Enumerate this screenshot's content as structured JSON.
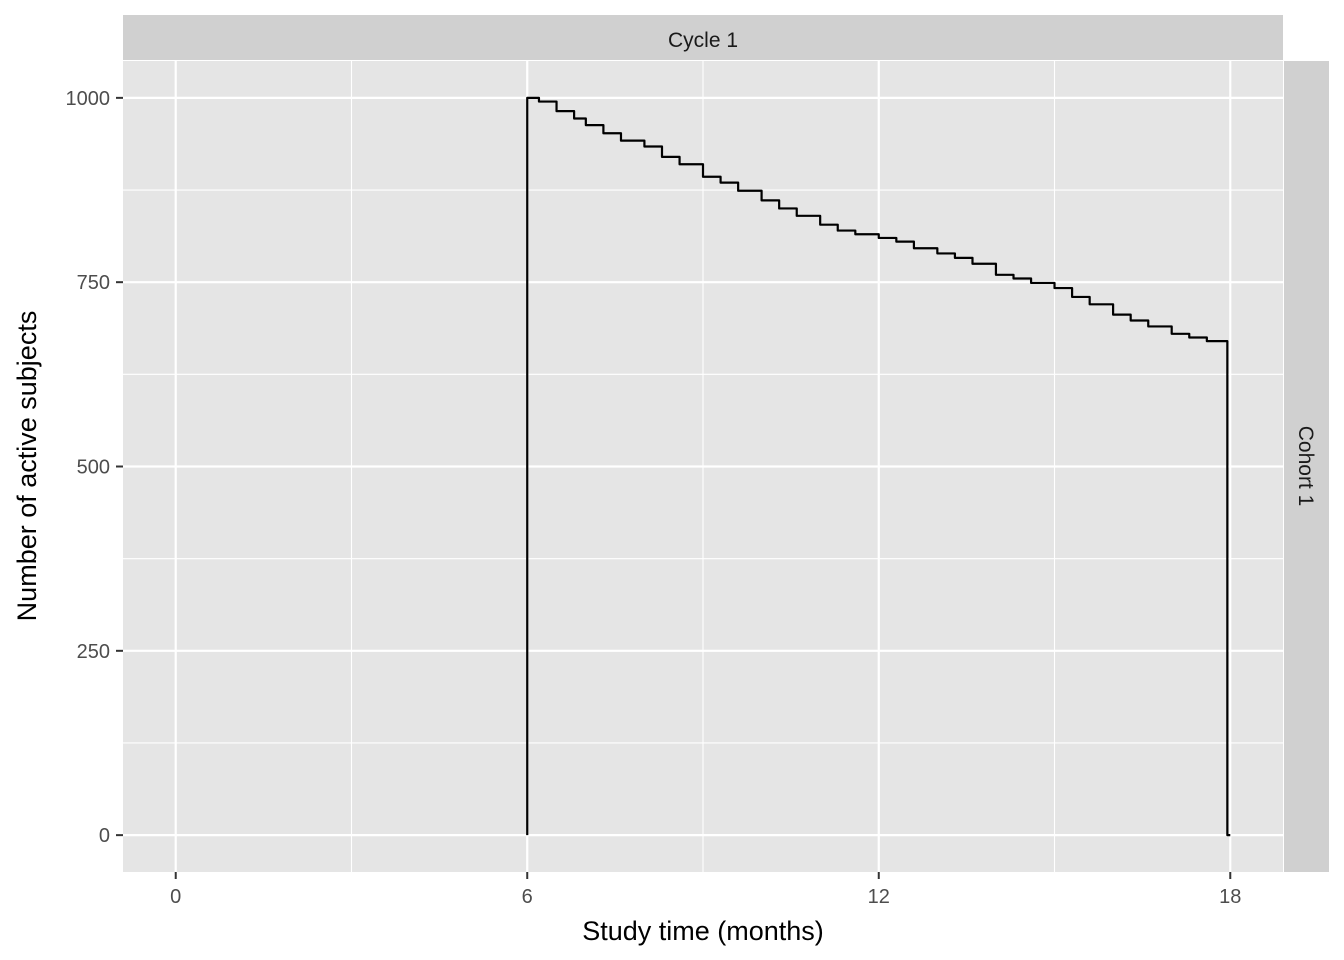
{
  "colors": {
    "panel_background": "#e5e5e5",
    "strip_background": "#d0d0d0",
    "grid": "#ffffff",
    "line": "#000000",
    "tick": "#333333"
  },
  "chart_data": {
    "type": "line",
    "facet_col_label": "Cycle 1",
    "facet_row_label": "Cohort 1",
    "xlabel": "Study time (months)",
    "ylabel": "Number of active subjects",
    "xlim": [
      -0.9,
      18.9
    ],
    "ylim": [
      -50,
      1050
    ],
    "x_ticks": [
      0,
      6,
      12,
      18
    ],
    "x_tick_labels": [
      "0",
      "6",
      "12",
      "18"
    ],
    "y_ticks": [
      0,
      250,
      500,
      750,
      1000
    ],
    "y_tick_labels": [
      "0",
      "250",
      "500",
      "750",
      "1000"
    ],
    "grid": true,
    "series": [
      {
        "step": true,
        "x": [
          6.0,
          6.0,
          6.2,
          6.5,
          6.8,
          7.0,
          7.3,
          7.6,
          8.0,
          8.3,
          8.6,
          9.0,
          9.3,
          9.6,
          10.0,
          10.3,
          10.6,
          11.0,
          11.3,
          11.6,
          12.0,
          12.3,
          12.6,
          13.0,
          13.3,
          13.6,
          14.0,
          14.3,
          14.6,
          15.0,
          15.3,
          15.6,
          16.0,
          16.3,
          16.6,
          17.0,
          17.3,
          17.6,
          17.95,
          17.95,
          18.0
        ],
        "y": [
          0,
          1000,
          995,
          982,
          972,
          963,
          952,
          942,
          934,
          920,
          910,
          893,
          885,
          874,
          861,
          850,
          840,
          828,
          820,
          815,
          810,
          805,
          796,
          789,
          783,
          775,
          760,
          755,
          749,
          742,
          730,
          720,
          706,
          698,
          690,
          680,
          675,
          670,
          664,
          0,
          0
        ]
      }
    ]
  }
}
